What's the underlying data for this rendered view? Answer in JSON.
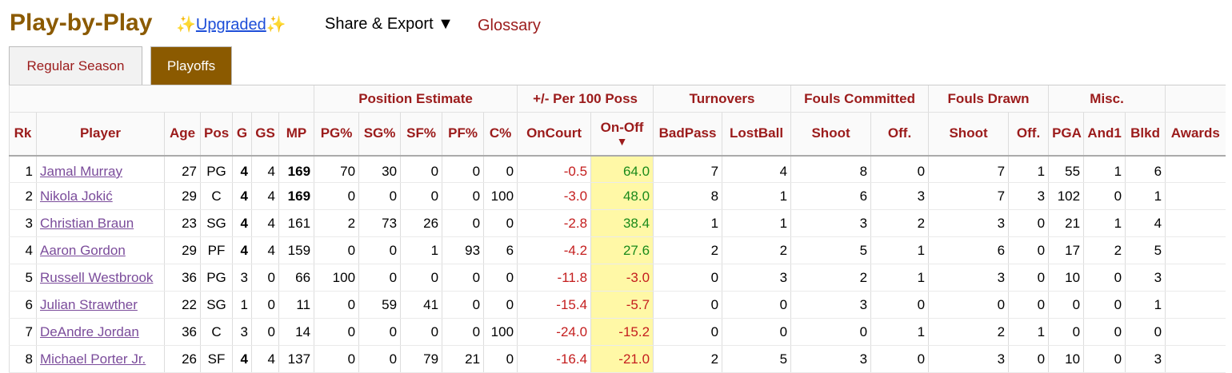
{
  "header": {
    "title": "Play-by-Play",
    "upgraded_label": "Upgraded",
    "sparkle": "✨",
    "share_label": "Share & Export ▼",
    "glossary_label": "Glossary"
  },
  "tabs": [
    {
      "label": "Regular Season",
      "active": false
    },
    {
      "label": "Playoffs",
      "active": true
    }
  ],
  "table": {
    "over_headers": {
      "position": "Position Estimate",
      "plusminus": "+/- Per 100 Poss",
      "turnovers": "Turnovers",
      "fouls_committed": "Fouls Committed",
      "fouls_drawn": "Fouls Drawn",
      "misc": "Misc."
    },
    "columns": [
      "Rk",
      "Player",
      "Age",
      "Pos",
      "G",
      "GS",
      "MP",
      "PG%",
      "SG%",
      "SF%",
      "PF%",
      "C%",
      "OnCourt",
      "On-Off",
      "BadPass",
      "LostBall",
      "Shoot",
      "Off.",
      "Shoot",
      "Off.",
      "PGA",
      "And1",
      "Blkd",
      "Awards"
    ],
    "sort_arrow": "▼",
    "rows": [
      {
        "rk": "1",
        "player": "Jamal Murray",
        "age": "27",
        "pos": "PG",
        "g": "4",
        "gs": "4",
        "mp": "169",
        "pg": "70",
        "sg": "30",
        "sf": "0",
        "pf": "0",
        "c": "0",
        "oncourt": "-0.5",
        "onoff": "64.0",
        "badpass": "7",
        "lostball": "4",
        "fc_shoot": "8",
        "fc_off": "0",
        "fd_shoot": "7",
        "fd_off": "1",
        "pga": "55",
        "and1": "1",
        "blkd": "6",
        "awards": ""
      },
      {
        "rk": "2",
        "player": "Nikola Jokić",
        "age": "29",
        "pos": "C",
        "g": "4",
        "gs": "4",
        "mp": "169",
        "pg": "0",
        "sg": "0",
        "sf": "0",
        "pf": "0",
        "c": "100",
        "oncourt": "-3.0",
        "onoff": "48.0",
        "badpass": "8",
        "lostball": "1",
        "fc_shoot": "6",
        "fc_off": "3",
        "fd_shoot": "7",
        "fd_off": "3",
        "pga": "102",
        "and1": "0",
        "blkd": "1",
        "awards": ""
      },
      {
        "rk": "3",
        "player": "Christian Braun",
        "age": "23",
        "pos": "SG",
        "g": "4",
        "gs": "4",
        "mp": "161",
        "pg": "2",
        "sg": "73",
        "sf": "26",
        "pf": "0",
        "c": "0",
        "oncourt": "-2.8",
        "onoff": "38.4",
        "badpass": "1",
        "lostball": "1",
        "fc_shoot": "3",
        "fc_off": "2",
        "fd_shoot": "3",
        "fd_off": "0",
        "pga": "21",
        "and1": "1",
        "blkd": "4",
        "awards": ""
      },
      {
        "rk": "4",
        "player": "Aaron Gordon",
        "age": "29",
        "pos": "PF",
        "g": "4",
        "gs": "4",
        "mp": "159",
        "pg": "0",
        "sg": "0",
        "sf": "1",
        "pf": "93",
        "c": "6",
        "oncourt": "-4.2",
        "onoff": "27.6",
        "badpass": "2",
        "lostball": "2",
        "fc_shoot": "5",
        "fc_off": "1",
        "fd_shoot": "6",
        "fd_off": "0",
        "pga": "17",
        "and1": "2",
        "blkd": "5",
        "awards": ""
      },
      {
        "rk": "5",
        "player": "Russell Westbrook",
        "age": "36",
        "pos": "PG",
        "g": "3",
        "gs": "0",
        "mp": "66",
        "pg": "100",
        "sg": "0",
        "sf": "0",
        "pf": "0",
        "c": "0",
        "oncourt": "-11.8",
        "onoff": "-3.0",
        "badpass": "0",
        "lostball": "3",
        "fc_shoot": "2",
        "fc_off": "1",
        "fd_shoot": "3",
        "fd_off": "0",
        "pga": "10",
        "and1": "0",
        "blkd": "3",
        "awards": ""
      },
      {
        "rk": "6",
        "player": "Julian Strawther",
        "age": "22",
        "pos": "SG",
        "g": "1",
        "gs": "0",
        "mp": "11",
        "pg": "0",
        "sg": "59",
        "sf": "41",
        "pf": "0",
        "c": "0",
        "oncourt": "-15.4",
        "onoff": "-5.7",
        "badpass": "0",
        "lostball": "0",
        "fc_shoot": "3",
        "fc_off": "0",
        "fd_shoot": "0",
        "fd_off": "0",
        "pga": "0",
        "and1": "0",
        "blkd": "1",
        "awards": ""
      },
      {
        "rk": "7",
        "player": "DeAndre Jordan",
        "age": "36",
        "pos": "C",
        "g": "3",
        "gs": "0",
        "mp": "14",
        "pg": "0",
        "sg": "0",
        "sf": "0",
        "pf": "0",
        "c": "100",
        "oncourt": "-24.0",
        "onoff": "-15.2",
        "badpass": "0",
        "lostball": "0",
        "fc_shoot": "0",
        "fc_off": "1",
        "fd_shoot": "2",
        "fd_off": "1",
        "pga": "0",
        "and1": "0",
        "blkd": "0",
        "awards": ""
      },
      {
        "rk": "8",
        "player": "Michael Porter Jr.",
        "age": "26",
        "pos": "SF",
        "g": "4",
        "gs": "4",
        "mp": "137",
        "pg": "0",
        "sg": "0",
        "sf": "79",
        "pf": "21",
        "c": "0",
        "oncourt": "-16.4",
        "onoff": "-21.0",
        "badpass": "2",
        "lostball": "5",
        "fc_shoot": "3",
        "fc_off": "0",
        "fd_shoot": "3",
        "fd_off": "0",
        "pga": "10",
        "and1": "0",
        "blkd": "3",
        "awards": ""
      }
    ]
  }
}
